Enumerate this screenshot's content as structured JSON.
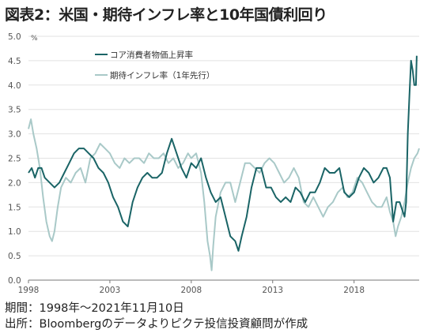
{
  "title": "図表2：米国・期待インフレ率と10年国債利回り",
  "footer": {
    "period": "期間：1998年～2021年11月10日",
    "source": "出所：Bloombergのデータよりピクテ投信投資顧問が作成"
  },
  "chart_data": {
    "type": "line",
    "ylabel": "%",
    "ylim": [
      0,
      5
    ],
    "yticks": [
      "0.0",
      "0.5",
      "1.0",
      "1.5",
      "2.0",
      "2.5",
      "3.0",
      "3.5",
      "4.0",
      "4.5",
      "5.0"
    ],
    "xlim": [
      1998,
      2022
    ],
    "xticks": [
      "1998",
      "2003",
      "2008",
      "2013",
      "2018"
    ],
    "legend_position": "top-left",
    "series": [
      {
        "name": "コア消費者物価上昇率",
        "color": "#1a6466",
        "points": [
          [
            1998,
            2.2
          ],
          [
            1998.2,
            2.3
          ],
          [
            1998.4,
            2.1
          ],
          [
            1998.6,
            2.3
          ],
          [
            1998.8,
            2.3
          ],
          [
            1999,
            2.1
          ],
          [
            1999.3,
            2.0
          ],
          [
            1999.6,
            1.9
          ],
          [
            1999.9,
            2.0
          ],
          [
            2000.2,
            2.2
          ],
          [
            2000.5,
            2.4
          ],
          [
            2000.8,
            2.6
          ],
          [
            2001.1,
            2.7
          ],
          [
            2001.4,
            2.7
          ],
          [
            2001.7,
            2.6
          ],
          [
            2002,
            2.5
          ],
          [
            2002.3,
            2.3
          ],
          [
            2002.6,
            2.2
          ],
          [
            2002.9,
            2.0
          ],
          [
            2003.2,
            1.7
          ],
          [
            2003.5,
            1.5
          ],
          [
            2003.8,
            1.2
          ],
          [
            2004.1,
            1.1
          ],
          [
            2004.4,
            1.6
          ],
          [
            2004.7,
            1.9
          ],
          [
            2005,
            2.1
          ],
          [
            2005.3,
            2.2
          ],
          [
            2005.6,
            2.1
          ],
          [
            2005.9,
            2.1
          ],
          [
            2006.2,
            2.2
          ],
          [
            2006.5,
            2.6
          ],
          [
            2006.8,
            2.9
          ],
          [
            2007.1,
            2.6
          ],
          [
            2007.4,
            2.3
          ],
          [
            2007.7,
            2.1
          ],
          [
            2008,
            2.4
          ],
          [
            2008.3,
            2.3
          ],
          [
            2008.6,
            2.5
          ],
          [
            2008.9,
            2.1
          ],
          [
            2009.2,
            1.8
          ],
          [
            2009.5,
            1.6
          ],
          [
            2009.8,
            1.7
          ],
          [
            2010.1,
            1.3
          ],
          [
            2010.4,
            0.9
          ],
          [
            2010.7,
            0.8
          ],
          [
            2010.9,
            0.6
          ],
          [
            2011.1,
            0.9
          ],
          [
            2011.4,
            1.3
          ],
          [
            2011.7,
            1.9
          ],
          [
            2012,
            2.3
          ],
          [
            2012.3,
            2.3
          ],
          [
            2012.6,
            1.9
          ],
          [
            2012.9,
            1.9
          ],
          [
            2013.2,
            1.7
          ],
          [
            2013.5,
            1.6
          ],
          [
            2013.8,
            1.7
          ],
          [
            2014.1,
            1.6
          ],
          [
            2014.4,
            1.9
          ],
          [
            2014.7,
            1.8
          ],
          [
            2015,
            1.6
          ],
          [
            2015.3,
            1.8
          ],
          [
            2015.6,
            1.8
          ],
          [
            2015.9,
            2.0
          ],
          [
            2016.2,
            2.3
          ],
          [
            2016.5,
            2.2
          ],
          [
            2016.8,
            2.2
          ],
          [
            2017.1,
            2.3
          ],
          [
            2017.4,
            1.8
          ],
          [
            2017.7,
            1.7
          ],
          [
            2018,
            1.8
          ],
          [
            2018.3,
            2.1
          ],
          [
            2018.6,
            2.3
          ],
          [
            2018.9,
            2.2
          ],
          [
            2019.2,
            2.0
          ],
          [
            2019.5,
            2.1
          ],
          [
            2019.8,
            2.3
          ],
          [
            2020,
            2.3
          ],
          [
            2020.2,
            2.1
          ],
          [
            2020.4,
            1.2
          ],
          [
            2020.6,
            1.6
          ],
          [
            2020.8,
            1.6
          ],
          [
            2021,
            1.4
          ],
          [
            2021.1,
            1.3
          ],
          [
            2021.2,
            1.6
          ],
          [
            2021.3,
            3.0
          ],
          [
            2021.4,
            3.8
          ],
          [
            2021.5,
            4.5
          ],
          [
            2021.6,
            4.3
          ],
          [
            2021.7,
            4.0
          ],
          [
            2021.8,
            4.0
          ],
          [
            2021.85,
            4.6
          ]
        ]
      },
      {
        "name": "期待インフレ率（1年先行）",
        "color": "#a9c9c8",
        "points": [
          [
            1998,
            3.1
          ],
          [
            1998.15,
            3.3
          ],
          [
            1998.3,
            3.0
          ],
          [
            1998.5,
            2.7
          ],
          [
            1998.7,
            2.3
          ],
          [
            1998.9,
            1.7
          ],
          [
            1999.1,
            1.2
          ],
          [
            1999.3,
            0.9
          ],
          [
            1999.45,
            0.8
          ],
          [
            1999.6,
            1.0
          ],
          [
            1999.8,
            1.5
          ],
          [
            2000,
            1.9
          ],
          [
            2000.3,
            2.1
          ],
          [
            2000.6,
            2.0
          ],
          [
            2000.9,
            2.2
          ],
          [
            2001.2,
            2.3
          ],
          [
            2001.5,
            2.0
          ],
          [
            2001.8,
            2.5
          ],
          [
            2002.1,
            2.6
          ],
          [
            2002.4,
            2.8
          ],
          [
            2002.7,
            2.7
          ],
          [
            2003,
            2.6
          ],
          [
            2003.3,
            2.4
          ],
          [
            2003.6,
            2.3
          ],
          [
            2003.9,
            2.5
          ],
          [
            2004.2,
            2.4
          ],
          [
            2004.5,
            2.5
          ],
          [
            2004.8,
            2.5
          ],
          [
            2005.1,
            2.4
          ],
          [
            2005.4,
            2.6
          ],
          [
            2005.7,
            2.5
          ],
          [
            2006,
            2.5
          ],
          [
            2006.3,
            2.6
          ],
          [
            2006.6,
            2.4
          ],
          [
            2006.9,
            2.5
          ],
          [
            2007.2,
            2.3
          ],
          [
            2007.5,
            2.4
          ],
          [
            2007.8,
            2.6
          ],
          [
            2008,
            2.5
          ],
          [
            2008.3,
            2.6
          ],
          [
            2008.6,
            2.2
          ],
          [
            2008.8,
            1.6
          ],
          [
            2009.0,
            0.8
          ],
          [
            2009.15,
            0.5
          ],
          [
            2009.25,
            0.2
          ],
          [
            2009.35,
            0.7
          ],
          [
            2009.5,
            1.3
          ],
          [
            2009.8,
            1.8
          ],
          [
            2010.1,
            2.0
          ],
          [
            2010.4,
            2.0
          ],
          [
            2010.7,
            1.6
          ],
          [
            2011,
            2.0
          ],
          [
            2011.3,
            2.4
          ],
          [
            2011.6,
            2.4
          ],
          [
            2011.9,
            2.3
          ],
          [
            2012.2,
            2.2
          ],
          [
            2012.5,
            2.4
          ],
          [
            2012.8,
            2.5
          ],
          [
            2013.1,
            2.4
          ],
          [
            2013.4,
            2.2
          ],
          [
            2013.7,
            2.0
          ],
          [
            2014,
            2.1
          ],
          [
            2014.3,
            2.3
          ],
          [
            2014.6,
            2.1
          ],
          [
            2014.9,
            1.6
          ],
          [
            2015.2,
            1.5
          ],
          [
            2015.5,
            1.7
          ],
          [
            2015.8,
            1.5
          ],
          [
            2016.1,
            1.3
          ],
          [
            2016.4,
            1.5
          ],
          [
            2016.7,
            1.6
          ],
          [
            2017,
            1.8
          ],
          [
            2017.3,
            1.9
          ],
          [
            2017.6,
            1.7
          ],
          [
            2017.9,
            1.8
          ],
          [
            2018.2,
            2.1
          ],
          [
            2018.5,
            2.0
          ],
          [
            2018.8,
            1.8
          ],
          [
            2019.1,
            1.6
          ],
          [
            2019.4,
            1.5
          ],
          [
            2019.7,
            1.5
          ],
          [
            2020,
            1.7
          ],
          [
            2020.2,
            1.4
          ],
          [
            2020.4,
            1.2
          ],
          [
            2020.55,
            0.9
          ],
          [
            2020.7,
            1.1
          ],
          [
            2020.9,
            1.3
          ],
          [
            2021.1,
            1.6
          ],
          [
            2021.3,
            2.0
          ],
          [
            2021.5,
            2.3
          ],
          [
            2021.7,
            2.5
          ],
          [
            2021.9,
            2.6
          ],
          [
            2022,
            2.7
          ]
        ]
      }
    ]
  }
}
